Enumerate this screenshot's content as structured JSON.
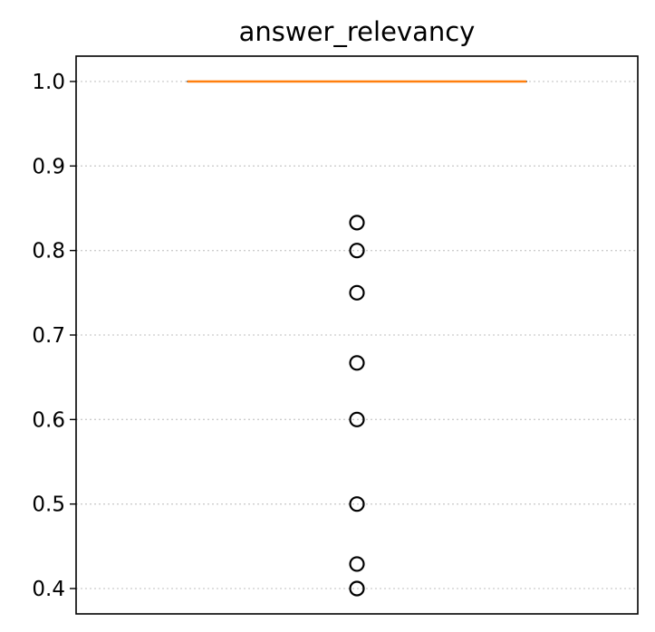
{
  "chart_data": {
    "type": "box",
    "title": "answer_relevancy",
    "xlabel": "",
    "ylabel": "",
    "ylim": [
      0.37,
      1.03
    ],
    "yticks": [
      0.4,
      0.5,
      0.6,
      0.7,
      0.8,
      0.9,
      1.0
    ],
    "ytick_labels": [
      "0.4",
      "0.5",
      "0.6",
      "0.7",
      "0.8",
      "0.9",
      "1.0"
    ],
    "grid": "horizontal dotted",
    "box": {
      "q1": 1.0,
      "median": 1.0,
      "q3": 1.0,
      "whisker_low": 1.0,
      "whisker_high": 1.0
    },
    "outliers": [
      0.833,
      0.8,
      0.75,
      0.667,
      0.6,
      0.5,
      0.429,
      0.4
    ],
    "colors": {
      "median": "#ff7f0e",
      "box": "#000000",
      "outlier_edge": "#000000",
      "grid": "#cccccc"
    }
  }
}
